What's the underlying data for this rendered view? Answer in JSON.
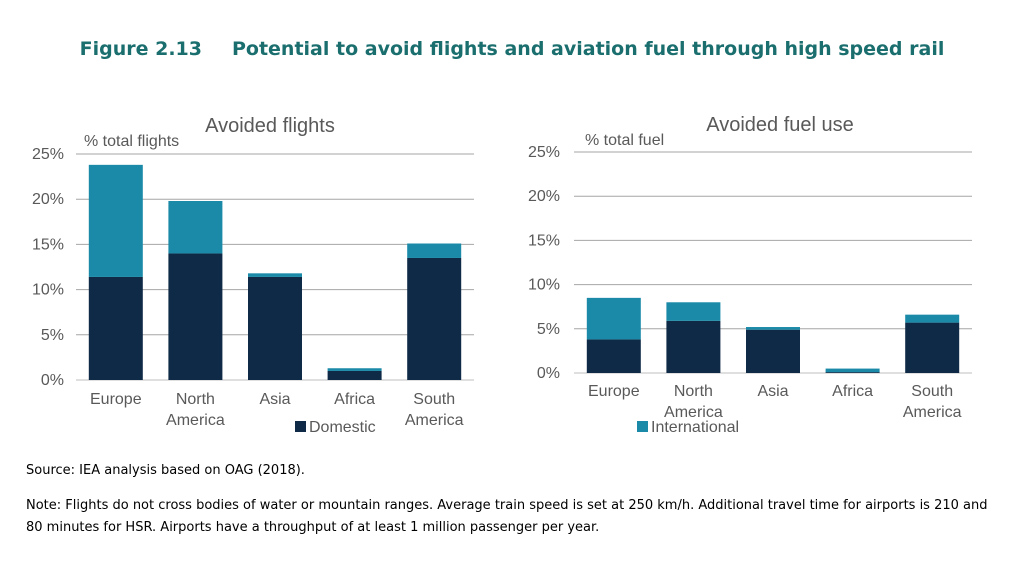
{
  "figure": {
    "number": "Figure 2.13",
    "title": "Potential to avoid flights and aviation fuel through high speed rail"
  },
  "chart_data": [
    {
      "type": "bar",
      "stacked": true,
      "title": "Avoided flights",
      "ylabel": "% total flights",
      "categories": [
        [
          "Europe"
        ],
        [
          "North",
          "America"
        ],
        [
          "Asia"
        ],
        [
          "Africa"
        ],
        [
          "South",
          "America"
        ]
      ],
      "series": [
        {
          "name": "Domestic",
          "color": "#0e2a47",
          "values": [
            11.4,
            14.0,
            11.4,
            1.0,
            13.5
          ]
        },
        {
          "name": "International",
          "color": "#1a8aa8",
          "values": [
            12.4,
            5.8,
            0.4,
            0.3,
            1.6
          ]
        }
      ],
      "yticks": [
        "0%",
        "5%",
        "10%",
        "15%",
        "20%",
        "25%"
      ],
      "ylim": [
        0,
        25
      ],
      "legend_entry": "Domestic"
    },
    {
      "type": "bar",
      "stacked": true,
      "title": "Avoided fuel use",
      "ylabel": "% total fuel",
      "categories": [
        [
          "Europe"
        ],
        [
          "North",
          "America"
        ],
        [
          "Asia"
        ],
        [
          "Africa"
        ],
        [
          "South",
          "America"
        ]
      ],
      "series": [
        {
          "name": "Domestic",
          "color": "#0e2a47",
          "values": [
            3.8,
            5.9,
            4.9,
            0.1,
            5.7
          ]
        },
        {
          "name": "International",
          "color": "#1a8aa8",
          "values": [
            4.7,
            2.1,
            0.3,
            0.4,
            0.9
          ]
        }
      ],
      "yticks": [
        "0%",
        "5%",
        "10%",
        "15%",
        "20%",
        "25%"
      ],
      "ylim": [
        0,
        25
      ],
      "legend_entry": "International"
    }
  ],
  "footer": {
    "source": "Source: IEA analysis based on OAG (2018).",
    "note": "Note: Flights do not cross bodies of water or mountain ranges. Average train speed is set at 250 km/h. Additional travel time for airports is 210 and 80 minutes for HSR. Airports have a throughput of at least 1 million passenger per year."
  }
}
